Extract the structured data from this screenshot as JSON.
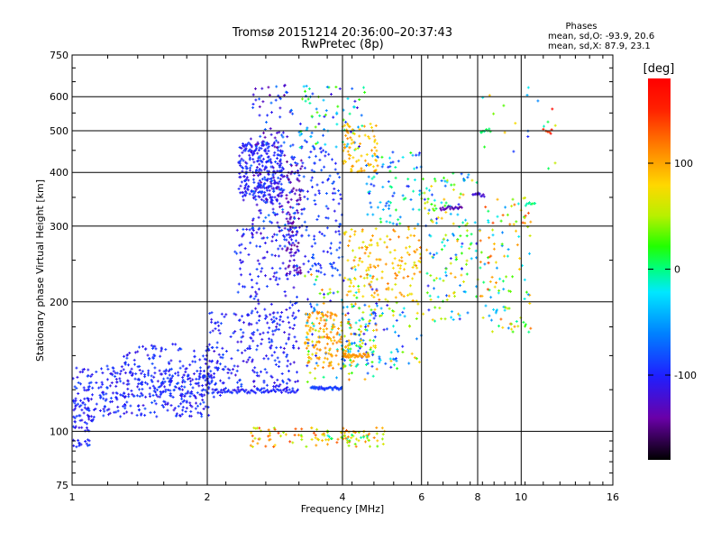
{
  "chart_data": {
    "type": "scatter",
    "title": "Tromsø 20151214 20:36:00–20:37:43",
    "subtitle": "RwPretec (8p)",
    "xlabel": "Frequency [MHz]",
    "ylabel": "Stationary phase Virtual Height [km]",
    "x_scale": "log",
    "y_scale": "log",
    "xlim": [
      1,
      16
    ],
    "ylim": [
      75,
      750
    ],
    "x_ticks": [
      1,
      2,
      4,
      6,
      8,
      10,
      16
    ],
    "x_tick_labels": [
      "1",
      "2",
      "4",
      "6",
      "8",
      "10",
      "16"
    ],
    "y_ticks": [
      75,
      100,
      200,
      300,
      400,
      500,
      600,
      750
    ],
    "y_tick_labels": [
      "75",
      "100",
      "200",
      "300",
      "400",
      "500",
      "600",
      "750"
    ],
    "grid": true,
    "stats": {
      "heading": "Phases",
      "line_o": "mean, sd,O: -93.9, 20.6",
      "line_x": "mean, sd,X:  87.9, 23.1"
    },
    "colorbar": {
      "label": "[deg]",
      "range": [
        -180,
        180
      ],
      "tick_values": [
        100,
        0,
        -100
      ],
      "tick_labels": [
        "100",
        "0",
        "-100"
      ]
    },
    "clusters": [
      {
        "f": [
          1.0,
          2.05
        ],
        "h": [
          108,
          142
        ],
        "ph": [
          -115,
          -80
        ],
        "n": 360
      },
      {
        "f": [
          1.3,
          2.2
        ],
        "h": [
          120,
          160
        ],
        "ph": [
          -115,
          -80
        ],
        "n": 140
      },
      {
        "f": [
          1.0,
          1.12
        ],
        "h": [
          100,
          120
        ],
        "ph": [
          -115,
          -85
        ],
        "n": 40
      },
      {
        "f": [
          2.0,
          3.2
        ],
        "h": [
          125,
          190
        ],
        "ph": [
          -120,
          -80
        ],
        "n": 230
      },
      {
        "f": [
          2.3,
          3.2
        ],
        "h": [
          180,
          300
        ],
        "ph": [
          -120,
          -80
        ],
        "n": 130
      },
      {
        "f": [
          2.35,
          2.95
        ],
        "h": [
          340,
          470
        ],
        "ph": [
          -120,
          -85
        ],
        "n": 280
      },
      {
        "f": [
          2.5,
          3.1
        ],
        "h": [
          280,
          640
        ],
        "ph": [
          -140,
          -60
        ],
        "n": 160
      },
      {
        "f": [
          3.0,
          3.25
        ],
        "h": [
          230,
          430
        ],
        "ph": [
          -150,
          -120
        ],
        "n": 90
      },
      {
        "f": [
          3.1,
          4.0
        ],
        "h": [
          230,
          480
        ],
        "ph": [
          -110,
          -70
        ],
        "n": 150
      },
      {
        "f": [
          3.2,
          4.5
        ],
        "h": [
          450,
          640
        ],
        "ph": [
          -120,
          40
        ],
        "n": 80
      },
      {
        "f": [
          3.3,
          4.8
        ],
        "h": [
          130,
          240
        ],
        "ph": [
          -110,
          120
        ],
        "n": 160
      },
      {
        "f": [
          3.3,
          4.2
        ],
        "h": [
          140,
          190
        ],
        "ph": [
          85,
          120
        ],
        "n": 130
      },
      {
        "f": [
          4.0,
          4.8
        ],
        "h": [
          400,
          520
        ],
        "ph": [
          75,
          110
        ],
        "n": 80
      },
      {
        "f": [
          4.0,
          6.0
        ],
        "h": [
          200,
          300
        ],
        "ph": [
          60,
          120
        ],
        "n": 150
      },
      {
        "f": [
          4.0,
          6.0
        ],
        "h": [
          140,
          200
        ],
        "ph": [
          -120,
          110
        ],
        "n": 120
      },
      {
        "f": [
          4.5,
          6.0
        ],
        "h": [
          300,
          450
        ],
        "ph": [
          -110,
          20
        ],
        "n": 80
      },
      {
        "f": [
          6.0,
          8.0
        ],
        "h": [
          180,
          400
        ],
        "ph": [
          -110,
          100
        ],
        "n": 160
      },
      {
        "f": [
          8.0,
          10.5
        ],
        "h": [
          170,
          350
        ],
        "ph": [
          -60,
          140
        ],
        "n": 120
      },
      {
        "f": [
          8.0,
          12.0
        ],
        "h": [
          380,
          650
        ],
        "ph": [
          -120,
          180
        ],
        "n": 20
      },
      {
        "f": [
          2.5,
          5.0
        ],
        "h": [
          92,
          102
        ],
        "ph": [
          30,
          140
        ],
        "n": 90
      },
      {
        "f": [
          1.0,
          1.1
        ],
        "h": [
          92,
          96
        ],
        "ph": [
          -110,
          -80
        ],
        "n": 15
      },
      {
        "f": [
          3.7,
          4.6
        ],
        "h": [
          95,
          100
        ],
        "ph": [
          -20,
          120
        ],
        "n": 30
      }
    ],
    "traces": [
      {
        "f": [
          2.05,
          3.2
        ],
        "h": 124,
        "ph": [
          -110,
          -85
        ],
        "n": 70
      },
      {
        "f": [
          3.4,
          4.0
        ],
        "h": 126,
        "ph": [
          -100,
          -80
        ],
        "n": 35
      },
      {
        "f": [
          4.0,
          4.6
        ],
        "h": 150,
        "ph": [
          95,
          115
        ],
        "n": 35
      },
      {
        "f": [
          6.6,
          7.4
        ],
        "h": 330,
        "ph": [
          -150,
          -120
        ],
        "n": 20
      },
      {
        "f": [
          7.8,
          8.3
        ],
        "h": 355,
        "ph": [
          -130,
          -110
        ],
        "n": 12
      },
      {
        "f": [
          8.1,
          8.6
        ],
        "h": 500,
        "ph": [
          -10,
          10
        ],
        "n": 8
      },
      {
        "f": [
          10.2,
          10.8
        ],
        "h": 338,
        "ph": [
          -10,
          10
        ],
        "n": 8
      },
      {
        "f": [
          11.2,
          11.8
        ],
        "h": 500,
        "ph": [
          130,
          160
        ],
        "n": 5
      }
    ]
  }
}
